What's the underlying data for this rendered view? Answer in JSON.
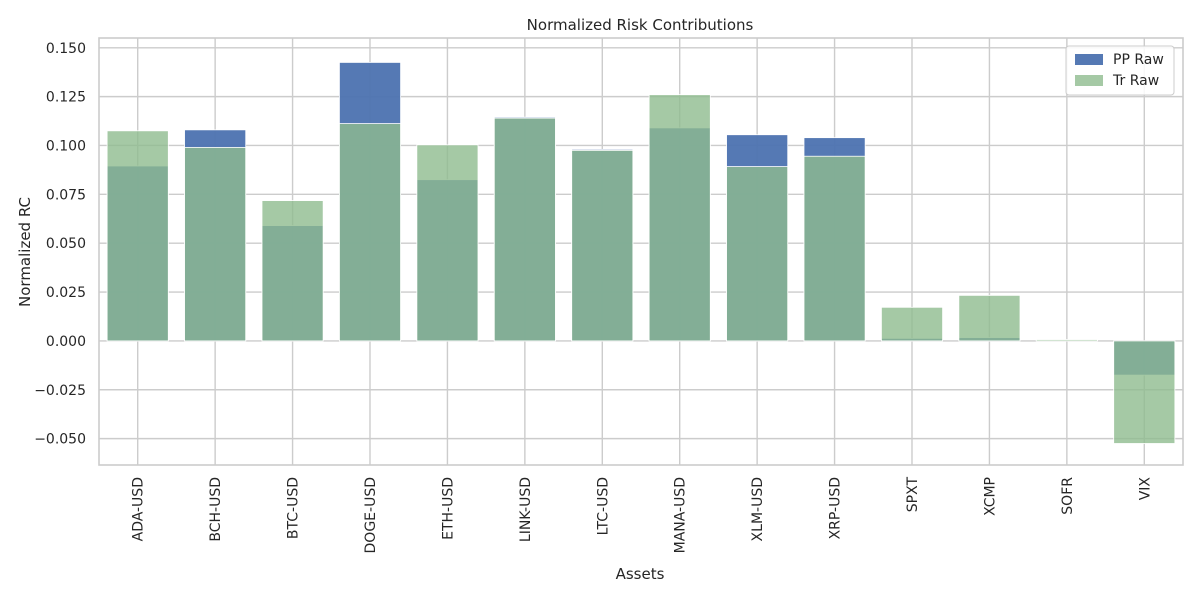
{
  "chart_data": {
    "type": "bar",
    "title": "Normalized Risk Contributions",
    "xlabel": "Assets",
    "ylabel": "Normalized RC",
    "categories": [
      "ADA-USD",
      "BCH-USD",
      "BTC-USD",
      "DOGE-USD",
      "ETH-USD",
      "LINK-USD",
      "LTC-USD",
      "MANA-USD",
      "XLM-USD",
      "XRP-USD",
      "SPXT",
      "XCMP",
      "SOFR",
      "VIX"
    ],
    "series": [
      {
        "name": "PP Raw",
        "color": "#4c72b0",
        "opacity": 0.95,
        "values": [
          0.0895,
          0.108,
          0.059,
          0.1425,
          0.0825,
          0.1145,
          0.098,
          0.109,
          0.1055,
          0.104,
          0.0013,
          0.0017,
          0.0003,
          -0.0175
        ]
      },
      {
        "name": "Tr Raw",
        "color": "#8fbc8f",
        "opacity": 0.8,
        "values": [
          0.1075,
          0.099,
          0.0718,
          0.1112,
          0.1003,
          0.114,
          0.0975,
          0.126,
          0.0892,
          0.0945,
          0.0172,
          0.0233,
          0.0007,
          -0.0525
        ]
      }
    ],
    "ylim": [
      -0.0635,
      0.155
    ],
    "yticks": [
      -0.05,
      -0.025,
      0.0,
      0.025,
      0.05,
      0.075,
      0.1,
      0.125,
      0.15
    ],
    "ytick_labels": [
      "−0.050",
      "−0.025",
      "0.000",
      "0.025",
      "0.050",
      "0.075",
      "0.100",
      "0.125",
      "0.150"
    ],
    "grid": true,
    "legend_position": "top-right"
  }
}
